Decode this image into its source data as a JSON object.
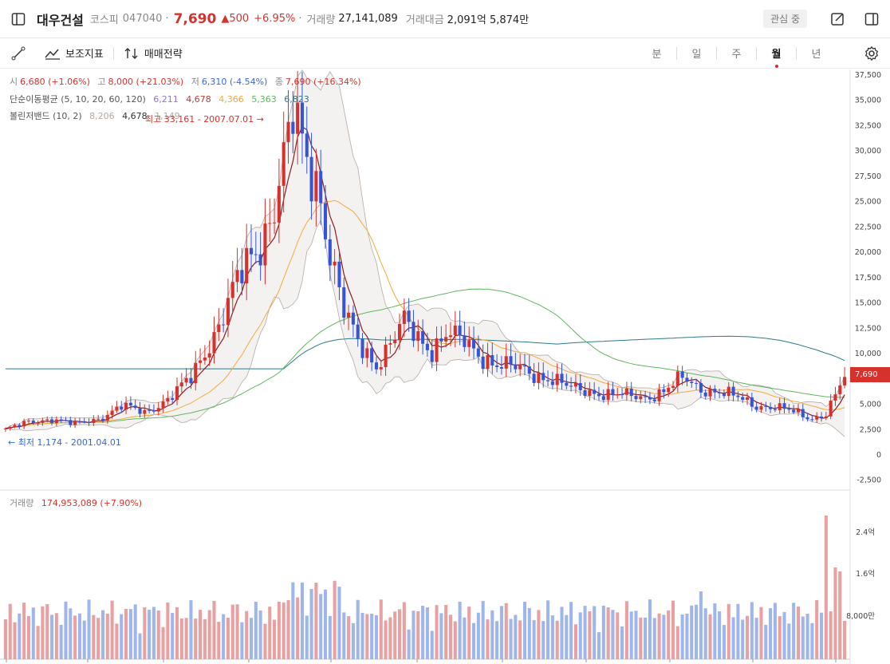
{
  "header": {
    "name": "대우건설",
    "market": "코스피",
    "code": "047040",
    "dot": "·",
    "price": "7,690",
    "change": "▲500",
    "change_pct": "+6.95%",
    "volume_label": "거래량",
    "volume": "27,141,089",
    "amount_label": "거래대금",
    "amount": "2,091억 5,874만",
    "watch_label": "관심 중"
  },
  "toolbar": {
    "indicators_label": "보조지표",
    "strategy_label": "매매전략",
    "periods": [
      "분",
      "일",
      "주",
      "월",
      "년"
    ],
    "active_period": "월"
  },
  "legend": {
    "ohlc": {
      "open_label": "시",
      "open": "6,680 (+1.06%)",
      "high_label": "고",
      "high": "8,000 (+21.03%)",
      "low_label": "저",
      "low": "6,310 (-4.54%)",
      "close_label": "종",
      "close": "7,690 (+16.34%)"
    },
    "ma": {
      "label": "단순이동평균 (5, 10, 20, 60, 120)",
      "v5": "6,211",
      "v10": "4,678",
      "v20": "4,366",
      "v60": "5,363",
      "v120": "6,823"
    },
    "bb": {
      "label": "볼린저밴드 (10, 2)",
      "upper": "8,206",
      "mid": "4,678",
      "lower": "1,149"
    },
    "max_annotation": "최고 33,161 - 2007.07.01 →",
    "min_annotation": "← 최저 1,174 - 2001.04.01",
    "current_price_tag": "7,690",
    "volume_legend_label": "거래량",
    "volume_legend_value": "174,953,089 (+7.90%)"
  },
  "colors": {
    "up": "#d6322d",
    "down": "#3555d6",
    "ma5": "#8e1b1b",
    "ma10": "#f2a93b",
    "ma20": "#5fb760",
    "ma60": "#2a7b8a",
    "bb": "#b7a9a2",
    "vol_up": "#e8a0a0",
    "vol_down": "#9fb6ec"
  },
  "chart_data": {
    "type": "candlestick",
    "y_ticks": [
      "37,500",
      "35,000",
      "32,500",
      "30,000",
      "27,500",
      "25,000",
      "22,500",
      "20,000",
      "17,500",
      "15,000",
      "12,500",
      "10,000",
      "7,500",
      "5,000",
      "2,500",
      "0",
      "-2,500"
    ],
    "vol_ticks": [
      "2.4억",
      "1.6억",
      "8,000만"
    ],
    "ylim": [
      -3000,
      38000
    ],
    "series_anchor_close": [
      [
        0,
        2500
      ],
      [
        5,
        3200
      ],
      [
        10,
        3600
      ],
      [
        15,
        3000
      ],
      [
        20,
        3600
      ],
      [
        25,
        4800
      ],
      [
        30,
        4200
      ],
      [
        35,
        5500
      ],
      [
        40,
        7500
      ],
      [
        45,
        12000
      ],
      [
        50,
        17000
      ],
      [
        55,
        21000
      ],
      [
        58,
        25000
      ],
      [
        62,
        33000
      ],
      [
        65,
        29000
      ],
      [
        68,
        26000
      ],
      [
        70,
        20000
      ],
      [
        73,
        14000
      ],
      [
        76,
        11000
      ],
      [
        80,
        9000
      ],
      [
        83,
        11000
      ],
      [
        86,
        13000
      ],
      [
        89,
        11500
      ],
      [
        92,
        10500
      ],
      [
        95,
        12000
      ],
      [
        99,
        11000
      ],
      [
        102,
        10000
      ],
      [
        106,
        9000
      ],
      [
        110,
        8500
      ],
      [
        114,
        8000
      ],
      [
        118,
        7500
      ],
      [
        122,
        6500
      ],
      [
        126,
        6300
      ],
      [
        130,
        6000
      ],
      [
        134,
        5800
      ],
      [
        138,
        5700
      ],
      [
        142,
        6300
      ],
      [
        146,
        7500
      ],
      [
        150,
        6600
      ],
      [
        154,
        6200
      ],
      [
        158,
        5600
      ],
      [
        162,
        4900
      ],
      [
        166,
        4700
      ],
      [
        170,
        4200
      ],
      [
        174,
        3600
      ],
      [
        177,
        4100
      ],
      [
        180,
        6700
      ],
      [
        181,
        7690
      ]
    ],
    "count": 182
  }
}
